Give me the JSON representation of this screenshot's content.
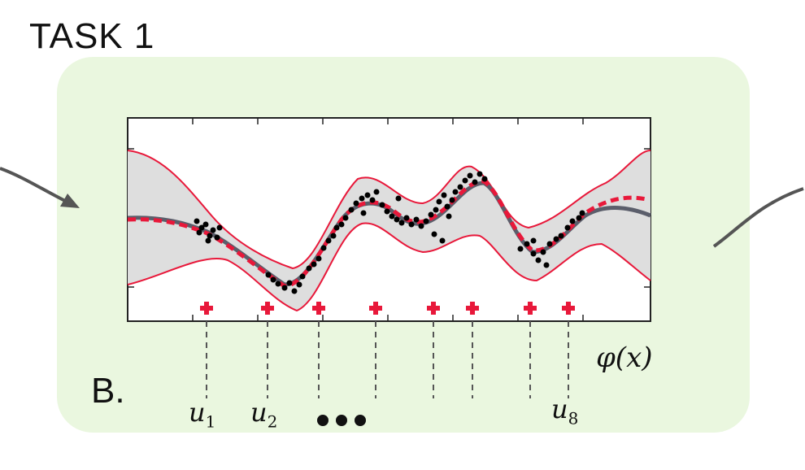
{
  "title": "TASK 1",
  "panel_label": "B.",
  "axis_label": "φ(x)",
  "inducing_labels": [
    {
      "var": "u",
      "sub": "1"
    },
    {
      "var": "u",
      "sub": "2"
    },
    {
      "var": "u",
      "sub": "8"
    }
  ],
  "colors": {
    "panel_bg": "#eaf7df",
    "band_fill": "#dedede",
    "true_mean": "#5b5e6b",
    "pred_mean": "#e8183a",
    "bounds": "#e8183a",
    "points": "#000000",
    "inducing": "#e8183a"
  }
}
